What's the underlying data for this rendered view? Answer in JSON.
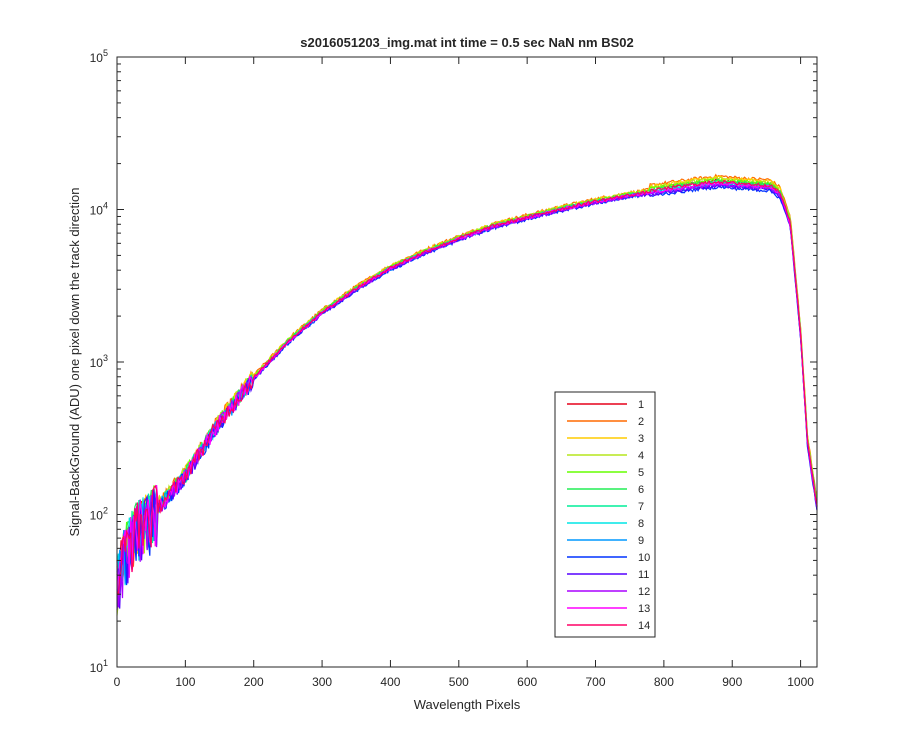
{
  "chart_data": {
    "type": "line",
    "title": "s2016051203_img.mat int time = 0.5 sec  NaN nm BS02",
    "xlabel": "Wavelength Pixels",
    "ylabel": "Signal-BackGround (ADU) one pixel down the track direction",
    "xlim": [
      0,
      1024
    ],
    "ylim": [
      10,
      100000
    ],
    "yscale": "log",
    "grid": false,
    "legend_position": "bottom-right",
    "xticks": [
      0,
      100,
      200,
      300,
      400,
      500,
      600,
      700,
      800,
      900,
      1000
    ],
    "yticks": [
      {
        "base": "10",
        "exp": "1",
        "value": 10
      },
      {
        "base": "10",
        "exp": "2",
        "value": 100
      },
      {
        "base": "10",
        "exp": "3",
        "value": 1000
      },
      {
        "base": "10",
        "exp": "4",
        "value": 10000
      },
      {
        "base": "10",
        "exp": "5",
        "value": 100000
      }
    ],
    "series": [
      {
        "name": "1",
        "color": "#e6001a",
        "scale": 1.05
      },
      {
        "name": "2",
        "color": "#ff6a00",
        "scale": 1.12
      },
      {
        "name": "3",
        "color": "#ffcc00",
        "scale": 1.1
      },
      {
        "name": "4",
        "color": "#b5e61d",
        "scale": 1.08
      },
      {
        "name": "5",
        "color": "#66ff00",
        "scale": 1.06
      },
      {
        "name": "6",
        "color": "#22ee55",
        "scale": 1.04
      },
      {
        "name": "7",
        "color": "#00ee99",
        "scale": 1.02
      },
      {
        "name": "8",
        "color": "#00e6e6",
        "scale": 1.0
      },
      {
        "name": "9",
        "color": "#0099ff",
        "scale": 0.98
      },
      {
        "name": "10",
        "color": "#0033ff",
        "scale": 0.95
      },
      {
        "name": "11",
        "color": "#5500ff",
        "scale": 0.97
      },
      {
        "name": "12",
        "color": "#aa00ff",
        "scale": 0.99
      },
      {
        "name": "13",
        "color": "#ff00ff",
        "scale": 1.01
      },
      {
        "name": "14",
        "color": "#ff0066",
        "scale": 1.03
      }
    ],
    "profile": {
      "x": [
        0,
        10,
        20,
        30,
        50,
        80,
        100,
        150,
        200,
        250,
        300,
        350,
        400,
        450,
        500,
        550,
        600,
        650,
        700,
        750,
        800,
        850,
        880,
        900,
        930,
        955,
        970,
        985,
        1000,
        1010,
        1024
      ],
      "y": [
        35,
        55,
        70,
        85,
        100,
        140,
        180,
        400,
        780,
        1350,
        2100,
        3000,
        4100,
        5200,
        6400,
        7700,
        8800,
        10000,
        11200,
        12300,
        13300,
        14300,
        14800,
        14500,
        14200,
        14000,
        12500,
        8000,
        1500,
        300,
        110
      ]
    }
  }
}
